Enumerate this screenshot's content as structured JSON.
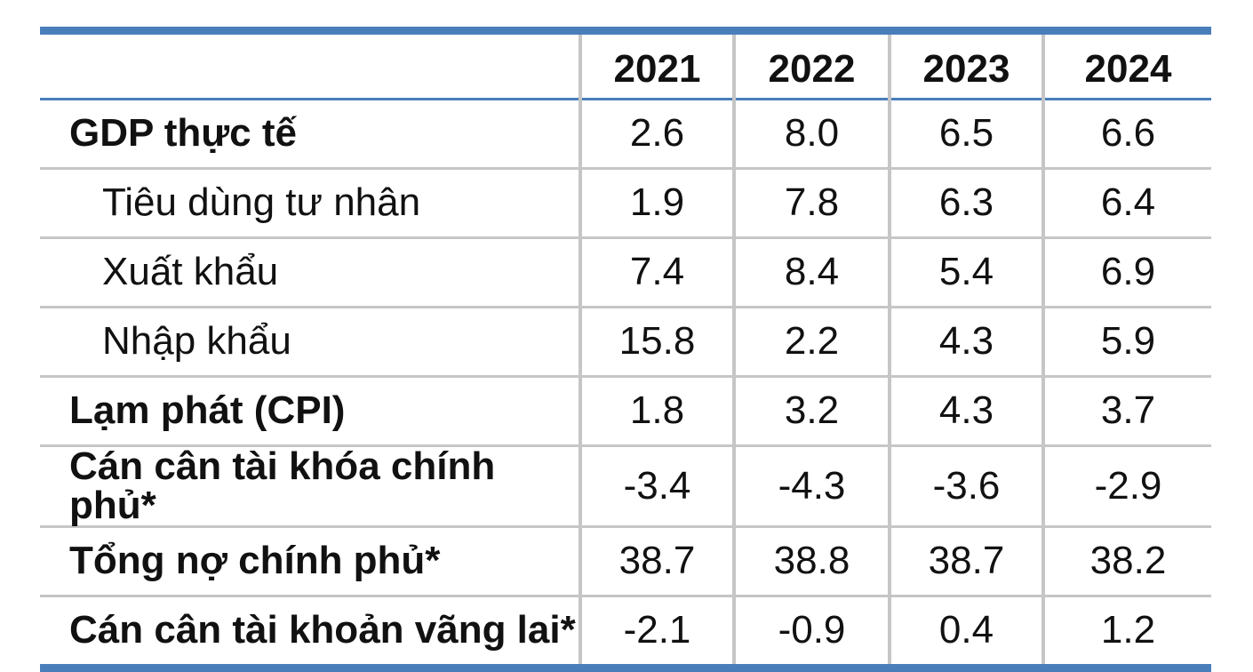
{
  "table": {
    "years": [
      "2021",
      "2022",
      "2023",
      "2024"
    ],
    "rows": [
      {
        "label": "GDP thực tế",
        "bold": true,
        "indent": false,
        "values": [
          "2.6",
          "8.0",
          "6.5",
          "6.6"
        ]
      },
      {
        "label": "Tiêu dùng tư nhân",
        "bold": false,
        "indent": true,
        "values": [
          "1.9",
          "7.8",
          "6.3",
          "6.4"
        ]
      },
      {
        "label": "Xuất khẩu",
        "bold": false,
        "indent": true,
        "values": [
          "7.4",
          "8.4",
          "5.4",
          "6.9"
        ]
      },
      {
        "label": "Nhập khẩu",
        "bold": false,
        "indent": true,
        "values": [
          "15.8",
          "2.2",
          "4.3",
          "5.9"
        ]
      },
      {
        "label": "Lạm phát (CPI)",
        "bold": true,
        "indent": false,
        "values": [
          "1.8",
          "3.2",
          "4.3",
          "3.7"
        ]
      },
      {
        "label": "Cán cân tài khóa chính phủ*",
        "bold": true,
        "indent": false,
        "values": [
          "-3.4",
          "-4.3",
          "-3.6",
          "-2.9"
        ]
      },
      {
        "label": "Tổng nợ chính phủ*",
        "bold": true,
        "indent": false,
        "values": [
          "38.7",
          "38.8",
          "38.7",
          "38.2"
        ]
      },
      {
        "label": "Cán cân tài khoản vãng lai*",
        "bold": true,
        "indent": false,
        "values": [
          "-2.1",
          "-0.9",
          "0.4",
          "1.2"
        ]
      }
    ]
  },
  "colors": {
    "accent": "#4a7ebb",
    "grid": "#c6c6c6"
  }
}
